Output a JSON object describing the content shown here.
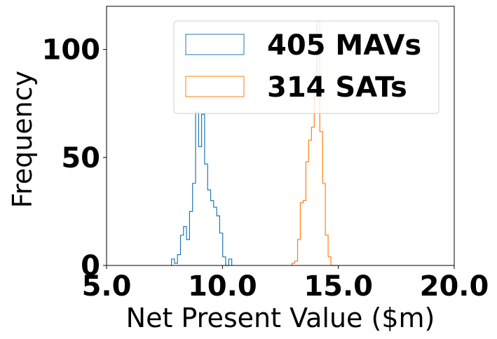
{
  "chart_data": {
    "type": "histogram",
    "xlabel": "Net Present Value ($m)",
    "ylabel": "Frequency",
    "xlim": [
      5.0,
      20.0
    ],
    "ylim": [
      0,
      120
    ],
    "xticks": [
      "5.0",
      "10.0",
      "15.0",
      "20.0"
    ],
    "xtick_values": [
      5.0,
      10.0,
      15.0,
      20.0
    ],
    "yticks": [
      "0",
      "50",
      "100"
    ],
    "ytick_values": [
      0,
      50,
      100
    ],
    "grid": false,
    "legend_position": "top-right",
    "series": [
      {
        "name": "405 MAVs",
        "color": "#1f77b4",
        "bin_edges": [
          7.8,
          7.93,
          8.06,
          8.19,
          8.32,
          8.45,
          8.58,
          8.71,
          8.84,
          8.97,
          9.1,
          9.23,
          9.36,
          9.49,
          9.62,
          9.75,
          9.88,
          10.01,
          10.14,
          10.27,
          10.4
        ],
        "counts": [
          3,
          1,
          5,
          14,
          18,
          12,
          25,
          38,
          71,
          55,
          70,
          47,
          35,
          30,
          27,
          23,
          15,
          4,
          0,
          3
        ]
      },
      {
        "name": "314 SATs",
        "color": "#ff7f0e",
        "bin_edges": [
          13.0,
          13.12,
          13.24,
          13.36,
          13.48,
          13.6,
          13.72,
          13.84,
          13.96,
          14.08,
          14.2,
          14.32,
          14.44,
          14.56,
          14.68,
          14.8,
          14.92
        ],
        "counts": [
          1,
          2,
          12,
          29,
          30,
          48,
          58,
          64,
          83,
          113,
          62,
          38,
          14,
          4,
          0,
          0
        ]
      }
    ]
  }
}
